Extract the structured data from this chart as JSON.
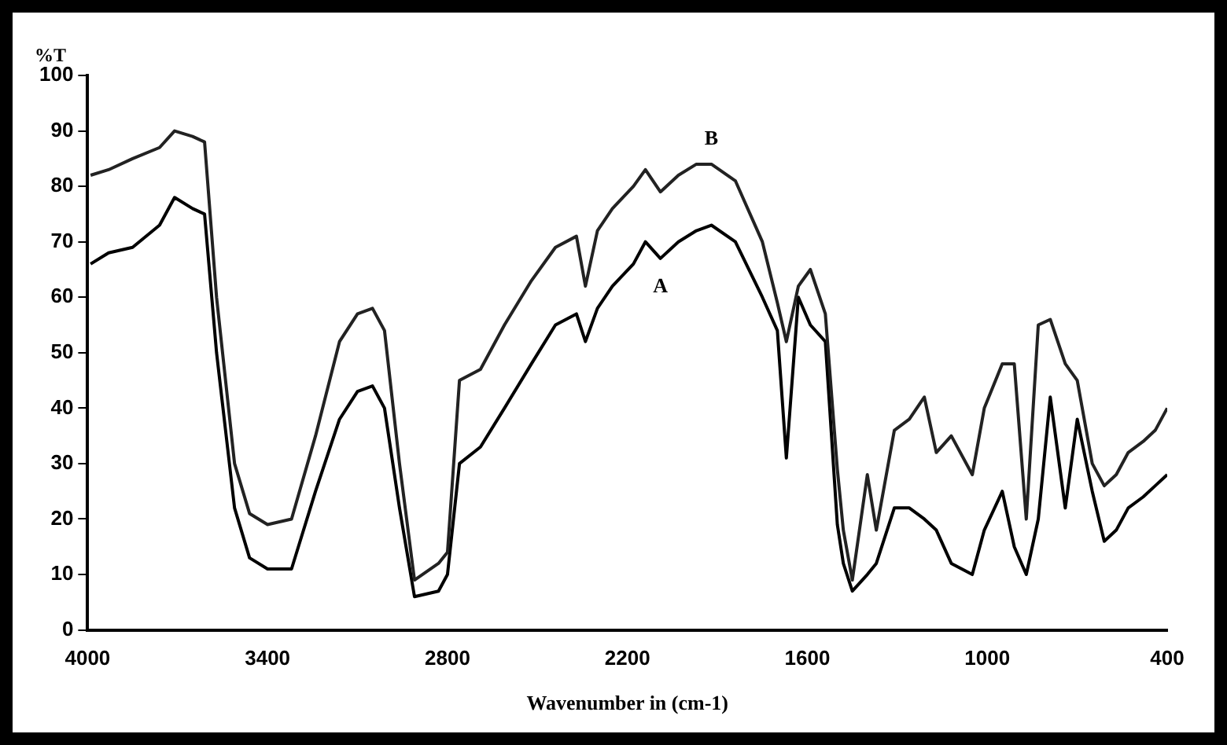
{
  "chart_data": {
    "type": "line",
    "xlabel": "Wavenumber in (cm-1)",
    "ylabel": "%T",
    "xlim": [
      4000,
      400
    ],
    "xticks": [
      4000,
      3400,
      2800,
      2200,
      1600,
      1000,
      400
    ],
    "ylim": [
      0,
      100
    ],
    "yticks": [
      0,
      10,
      20,
      30,
      40,
      50,
      60,
      70,
      80,
      90,
      100
    ],
    "grid": false,
    "legend": false,
    "marker": "none",
    "line_style": "solid",
    "x": [
      3990,
      3930,
      3850,
      3760,
      3710,
      3650,
      3610,
      3570,
      3510,
      3460,
      3400,
      3320,
      3240,
      3160,
      3100,
      3050,
      3010,
      2960,
      2910,
      2830,
      2800,
      2760,
      2690,
      2610,
      2520,
      2440,
      2370,
      2340,
      2300,
      2250,
      2180,
      2140,
      2090,
      2030,
      1970,
      1920,
      1840,
      1750,
      1700,
      1670,
      1630,
      1590,
      1540,
      1500,
      1480,
      1450,
      1400,
      1370,
      1310,
      1260,
      1210,
      1170,
      1120,
      1050,
      1010,
      950,
      910,
      870,
      830,
      790,
      740,
      700,
      650,
      610,
      570,
      530,
      480,
      440,
      400
    ],
    "series": [
      {
        "name": "B",
        "color": "#222222",
        "values": [
          82,
          83,
          85,
          87,
          90,
          89,
          88,
          60,
          30,
          21,
          19,
          20,
          35,
          52,
          57,
          58,
          54,
          30,
          9,
          12,
          14,
          45,
          47,
          55,
          63,
          69,
          71,
          62,
          72,
          76,
          80,
          83,
          79,
          82,
          84,
          84,
          81,
          70,
          59,
          52,
          62,
          65,
          57,
          29,
          18,
          9,
          28,
          18,
          36,
          38,
          42,
          32,
          35,
          28,
          40,
          48,
          48,
          20,
          55,
          56,
          48,
          45,
          30,
          26,
          28,
          32,
          34,
          36,
          40
        ]
      },
      {
        "name": "A",
        "color": "#000000",
        "values": [
          66,
          68,
          69,
          73,
          78,
          76,
          75,
          50,
          22,
          13,
          11,
          11,
          25,
          38,
          43,
          44,
          40,
          22,
          6,
          7,
          10,
          30,
          33,
          40,
          48,
          55,
          57,
          52,
          58,
          62,
          66,
          70,
          67,
          70,
          72,
          73,
          70,
          60,
          54,
          31,
          60,
          55,
          52,
          19,
          12,
          7,
          10,
          12,
          22,
          22,
          20,
          18,
          12,
          10,
          18,
          25,
          15,
          10,
          20,
          42,
          22,
          38,
          25,
          16,
          18,
          22,
          24,
          26,
          28
        ]
      }
    ]
  }
}
